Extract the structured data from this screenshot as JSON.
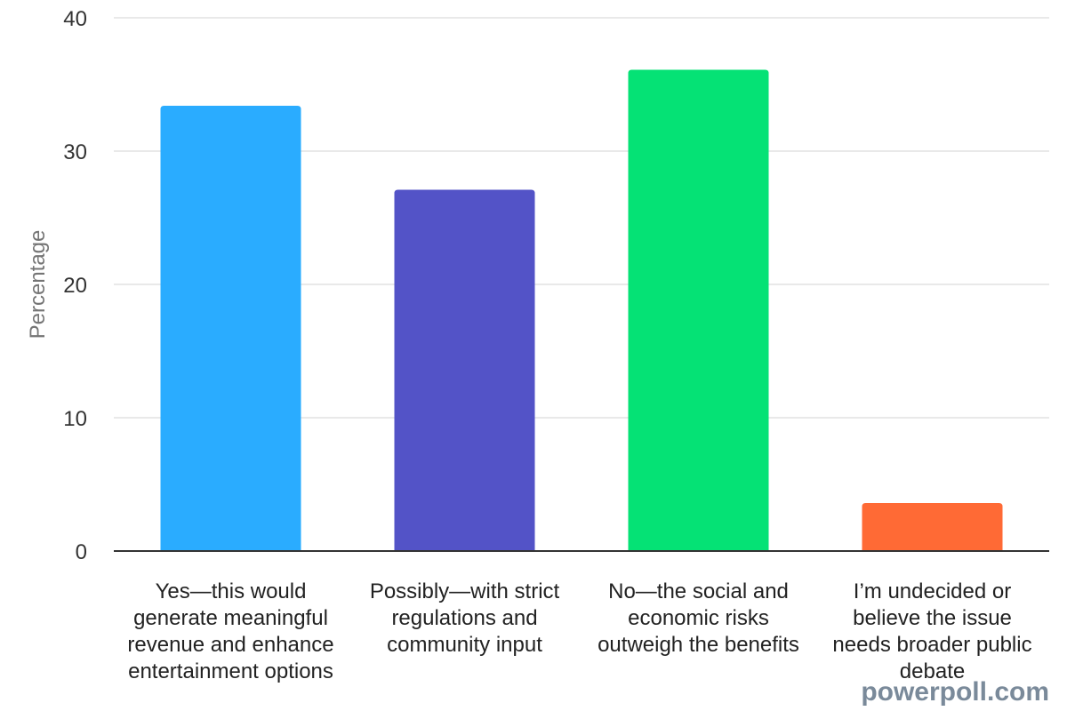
{
  "chart_data": {
    "type": "bar",
    "ylabel": "Percentage",
    "xlabel": "",
    "ylim": [
      0,
      40
    ],
    "yticks": [
      0,
      10,
      20,
      30,
      40
    ],
    "grid": true,
    "categories": [
      [
        "Yes—this would",
        "generate meaningful",
        "revenue and enhance",
        "entertainment options"
      ],
      [
        "Possibly—with strict",
        "regulations and",
        "community input"
      ],
      [
        "No—the social and",
        "economic risks",
        "outweigh the benefits"
      ],
      [
        "I’m undecided or",
        "believe the issue",
        "needs broader public",
        "debate"
      ]
    ],
    "values": [
      33.4,
      27.1,
      36.1,
      3.6
    ],
    "colors": [
      "#2aacff",
      "#5353c7",
      "#05e275",
      "#ff6a35"
    ]
  },
  "watermark": "powerpoll.com"
}
